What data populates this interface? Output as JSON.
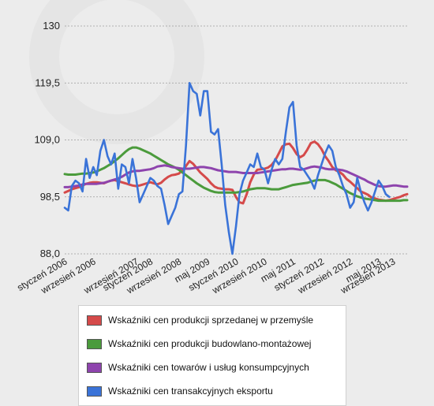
{
  "chart_data": {
    "type": "line",
    "ylim": [
      88.0,
      130
    ],
    "yticks": [
      "88,0",
      "98,5",
      "109,0",
      "119,5",
      "130"
    ],
    "ytick_values": [
      88.0,
      98.5,
      109.0,
      119.5,
      130
    ],
    "xtick_labels": [
      "styczeń 2006",
      "wrzesień 2006",
      "wrzesień 2007",
      "styczeń 2008",
      "wrzesień 2008",
      "maj 2009",
      "styczeń 2010",
      "wrzesień 2010",
      "maj 2011",
      "styczeń 2012",
      "wrzesień 2012",
      "maj 2013",
      "wrzesień 2013"
    ],
    "xtick_positions": [
      0,
      8,
      20,
      24,
      32,
      40,
      48,
      56,
      64,
      72,
      80,
      88,
      92
    ],
    "legend": "bottom",
    "grid": "horizontal dashed",
    "series": [
      {
        "name": "Wskaźniki cen produkcji sprzedanej w przemyśle",
        "color": "#d54a4a",
        "values": [
          99.3,
          99.6,
          99.9,
          100.1,
          100.3,
          100.6,
          100.9,
          101.1,
          101.2,
          101.2,
          101.1,
          101.0,
          101.3,
          101.5,
          101.6,
          101.4,
          101.2,
          101.0,
          100.8,
          100.6,
          100.5,
          100.6,
          100.8,
          101.0,
          101.2,
          101.0,
          100.8,
          101.1,
          101.7,
          102.2,
          102.5,
          102.6,
          102.8,
          103.4,
          104.2,
          105.1,
          104.6,
          103.8,
          103.0,
          102.4,
          101.8,
          101.0,
          100.4,
          100.1,
          100.0,
          99.9,
          99.9,
          99.8,
          98.5,
          97.5,
          97.3,
          99.0,
          101.2,
          102.6,
          103.5,
          103.6,
          103.7,
          103.9,
          104.4,
          105.2,
          106.5,
          107.8,
          108.2,
          108.3,
          107.5,
          106.4,
          105.8,
          106.2,
          107.2,
          108.4,
          108.7,
          108.2,
          107.3,
          106.0,
          105.1,
          104.0,
          103.4,
          103.1,
          102.6,
          101.8,
          101.3,
          100.7,
          100.1,
          99.5,
          99.2,
          98.9,
          98.4,
          98.2,
          98.0,
          97.9,
          97.8,
          97.9,
          98.1,
          98.3,
          98.5,
          98.8,
          99.0
        ]
      },
      {
        "name": "Wskaźniki cen produkcji budowlano-montażowej",
        "color": "#4b9b3c",
        "values": [
          102.7,
          102.6,
          102.6,
          102.6,
          102.7,
          102.8,
          102.8,
          102.9,
          103.0,
          103.2,
          103.5,
          103.8,
          104.2,
          104.6,
          105.1,
          105.6,
          106.2,
          106.8,
          107.3,
          107.6,
          107.6,
          107.4,
          107.1,
          106.8,
          106.5,
          106.1,
          105.7,
          105.3,
          104.9,
          104.5,
          104.2,
          103.9,
          103.5,
          103.0,
          102.5,
          102.0,
          101.5,
          101.0,
          100.6,
          100.2,
          99.9,
          99.6,
          99.4,
          99.3,
          99.3,
          99.3,
          99.3,
          99.3,
          99.3,
          99.4,
          99.5,
          99.7,
          99.9,
          100.0,
          100.1,
          100.1,
          100.1,
          100.0,
          99.9,
          99.9,
          99.9,
          100.1,
          100.3,
          100.5,
          100.7,
          100.8,
          100.9,
          101.0,
          101.1,
          101.3,
          101.5,
          101.6,
          101.6,
          101.6,
          101.4,
          101.1,
          100.8,
          100.4,
          100.0,
          99.6,
          99.2,
          98.9,
          98.6,
          98.4,
          98.2,
          98.1,
          98.0,
          97.9,
          97.8,
          97.8,
          97.8,
          97.8,
          97.8,
          97.8,
          97.8,
          97.9,
          97.9
        ]
      },
      {
        "name": "Wskaźniki cen towarów i usług konsumpcyjnych",
        "color": "#8e44ad",
        "values": [
          100.3,
          100.3,
          100.4,
          100.5,
          100.6,
          100.8,
          100.9,
          100.9,
          100.9,
          100.9,
          101.0,
          101.1,
          101.3,
          101.5,
          101.7,
          101.9,
          102.2,
          102.6,
          103.0,
          103.2,
          103.3,
          103.3,
          103.4,
          103.5,
          103.6,
          103.8,
          104.1,
          104.2,
          104.3,
          104.2,
          104.0,
          103.9,
          103.8,
          103.7,
          103.7,
          103.7,
          103.8,
          103.9,
          104.0,
          104.0,
          103.9,
          103.8,
          103.6,
          103.4,
          103.3,
          103.2,
          103.1,
          103.1,
          103.1,
          103.0,
          102.9,
          102.9,
          102.9,
          102.9,
          102.9,
          103.0,
          103.1,
          103.2,
          103.3,
          103.4,
          103.5,
          103.6,
          103.6,
          103.7,
          103.7,
          103.6,
          103.5,
          103.6,
          103.8,
          104.0,
          104.1,
          104.0,
          103.9,
          103.7,
          103.6,
          103.6,
          103.6,
          103.5,
          103.4,
          103.2,
          102.9,
          102.6,
          102.3,
          102.0,
          101.7,
          101.3,
          101.0,
          100.7,
          100.5,
          100.4,
          100.4,
          100.5,
          100.6,
          100.6,
          100.5,
          100.4,
          100.4
        ]
      },
      {
        "name": "Wskaźniki cen transakcyjnych eksportu",
        "color": "#3a73d8",
        "values": [
          96.5,
          96.0,
          100.5,
          101.5,
          101.0,
          99.5,
          105.5,
          102.0,
          104.0,
          102.5,
          107.0,
          109.0,
          106.0,
          104.5,
          106.5,
          100.0,
          104.5,
          104.0,
          101.0,
          105.5,
          102.0,
          97.5,
          99.0,
          100.5,
          102.0,
          101.5,
          100.5,
          100.0,
          97.0,
          93.5,
          95.0,
          96.5,
          99.0,
          99.5,
          108.0,
          119.5,
          118.0,
          117.5,
          113.5,
          118.0,
          118.0,
          110.5,
          110.0,
          111.0,
          104.5,
          97.0,
          92.0,
          88.0,
          93.0,
          99.0,
          101.5,
          103.0,
          104.5,
          104.0,
          106.5,
          104.0,
          103.5,
          101.0,
          103.5,
          105.5,
          104.5,
          105.5,
          110.5,
          115.0,
          116.0,
          108.0,
          104.0,
          103.5,
          102.5,
          101.5,
          100.0,
          102.5,
          104.5,
          106.5,
          108.0,
          107.0,
          104.0,
          102.5,
          100.5,
          99.0,
          96.5,
          97.5,
          102.0,
          99.5,
          97.5,
          96.0,
          97.5,
          99.5,
          101.5,
          100.5,
          99.0,
          98.5
        ]
      }
    ]
  }
}
